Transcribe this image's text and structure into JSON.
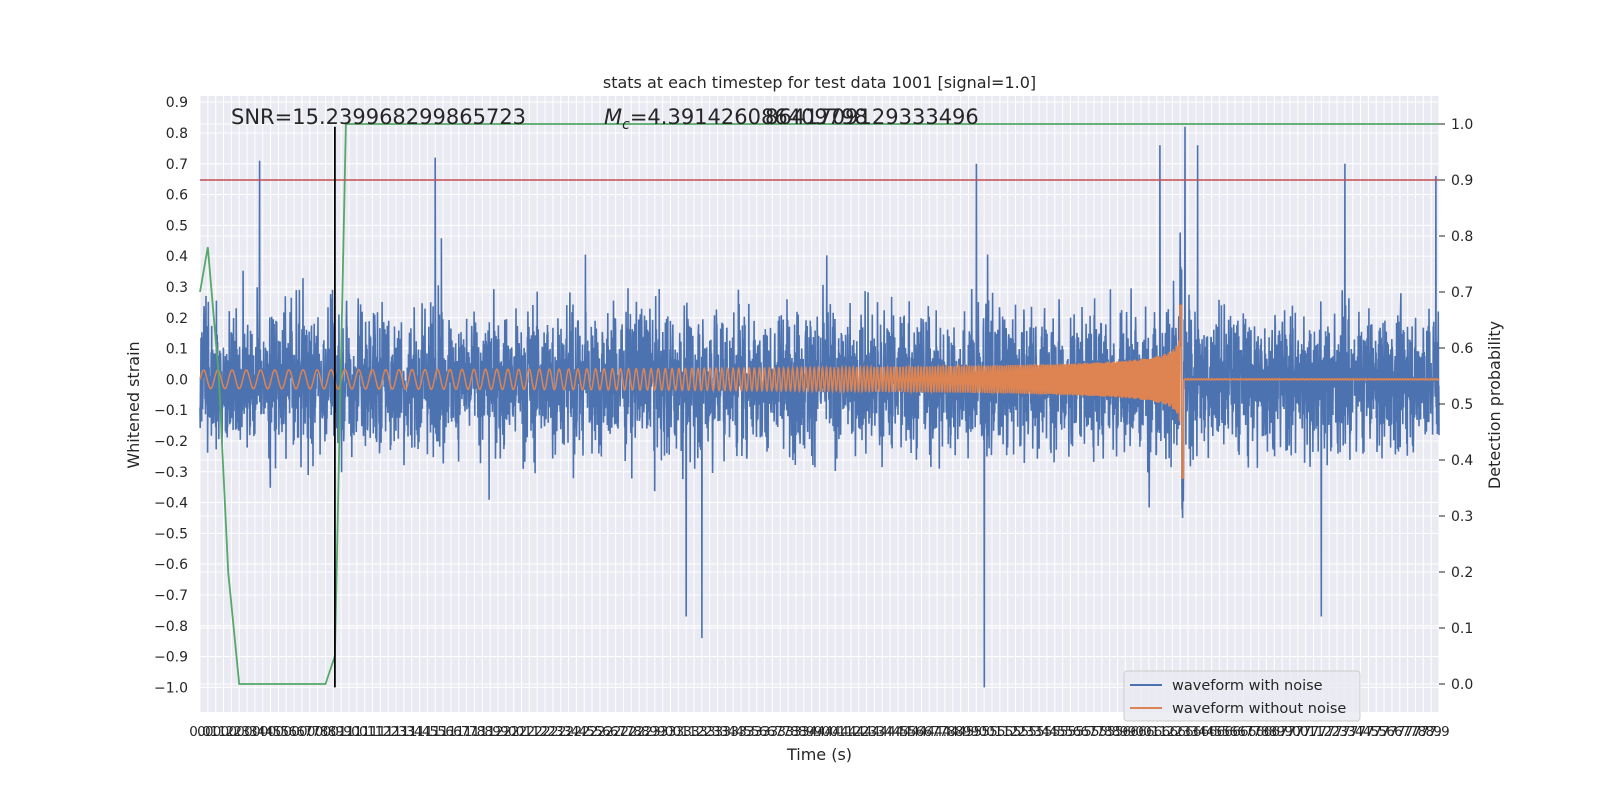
{
  "chart_data": {
    "type": "line",
    "title": "stats at each timestep for test data 1001 [signal=1.0]",
    "xlabel": "Time (s)",
    "ylabel_left": "Whitened strain",
    "ylabel_right": "Detection probability",
    "xlim": [
      0.0,
      7.9
    ],
    "ylim_left": [
      -1.08,
      0.92
    ],
    "ylim_right": [
      -0.05,
      1.05
    ],
    "x_tick_start": 0.0,
    "x_tick_step": 0.05,
    "x_tick_count": 159,
    "y_ticks_left": [
      "−1.0",
      "−0.9",
      "−0.8",
      "−0.7",
      "−0.6",
      "−0.5",
      "−0.4",
      "−0.3",
      "−0.2",
      "−0.1",
      "0.0",
      "0.1",
      "0.2",
      "0.3",
      "0.4",
      "0.5",
      "0.6",
      "0.7",
      "0.8",
      "0.9"
    ],
    "y_ticks_right": [
      "0.0",
      "0.1",
      "0.2",
      "0.3",
      "0.4",
      "0.5",
      "0.6",
      "0.7",
      "0.8",
      "0.9",
      "1.0"
    ],
    "grid": true,
    "legend_position": "lower-right",
    "annotations": {
      "snr": "SNR=15.239968299865723",
      "mc_symbol": "M",
      "mc_sub": "c",
      "mc_value": "=4.391426086409798",
      "mc_overlap": "8641709129333496"
    },
    "threshold_line": {
      "y": 0.9,
      "axis": "right",
      "color": "#c44e52"
    },
    "marker_line": {
      "x": 0.86,
      "y_from": -1.0,
      "y_to": 0.82,
      "color": "#000000"
    },
    "series": [
      {
        "name": "waveform with noise",
        "axis": "left",
        "color": "#4c72b0",
        "kind": "noise",
        "base_amplitude": 0.3,
        "peak_max": 0.82,
        "trough_min": -1.0,
        "peaks": [
          [
            0.38,
            0.71
          ],
          [
            1.5,
            0.72
          ],
          [
            4.95,
            0.7
          ],
          [
            6.12,
            0.76
          ],
          [
            6.28,
            0.82
          ],
          [
            6.36,
            0.76
          ],
          [
            7.3,
            0.7
          ],
          [
            7.88,
            0.66
          ]
        ],
        "troughs": [
          [
            3.1,
            -0.77
          ],
          [
            3.2,
            -0.84
          ],
          [
            5.0,
            -1.0
          ],
          [
            7.15,
            -0.77
          ]
        ]
      },
      {
        "name": "waveform without noise",
        "axis": "left",
        "color": "#dd8452",
        "kind": "chirp",
        "start_amplitude": 0.03,
        "peak_x": 6.26,
        "peak_amplitude": 0.24,
        "trough_amplitude": -0.32,
        "start_cycles_per_s": 11,
        "end_cycles_per_s": 120
      },
      {
        "name": "detection probability",
        "axis": "right",
        "color": "#55a868",
        "kind": "line",
        "x": [
          0.0,
          0.05,
          0.12,
          0.18,
          0.25,
          0.32,
          0.4,
          0.5,
          0.6,
          0.7,
          0.8,
          0.86,
          0.93,
          7.9
        ],
        "y": [
          0.7,
          0.78,
          0.55,
          0.2,
          0.0,
          0.0,
          0.0,
          0.0,
          0.0,
          0.0,
          0.0,
          0.05,
          1.0,
          1.0
        ]
      }
    ],
    "legend": [
      "waveform with noise",
      "waveform without noise"
    ]
  }
}
